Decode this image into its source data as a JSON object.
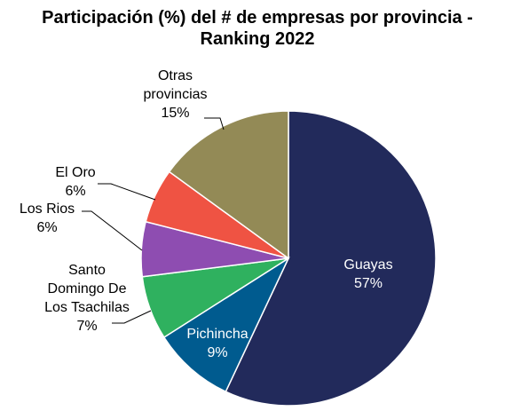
{
  "chart_data": {
    "type": "pie",
    "title": "Participación (%) del # de empresas por provincia - Ranking 2022",
    "categories": [
      "Guayas",
      "Pichincha",
      "Santo Domingo De Los Tsachilas",
      "Los Rios",
      "El Oro",
      "Otras provincias"
    ],
    "values": [
      57,
      9,
      7,
      6,
      6,
      15
    ],
    "value_labels": [
      "57%",
      "9%",
      "7%",
      "6%",
      "6%",
      "15%"
    ],
    "colors": [
      "#222a5b",
      "#005b8f",
      "#2fb15f",
      "#8e4db1",
      "#ef5343",
      "#938a56"
    ]
  }
}
